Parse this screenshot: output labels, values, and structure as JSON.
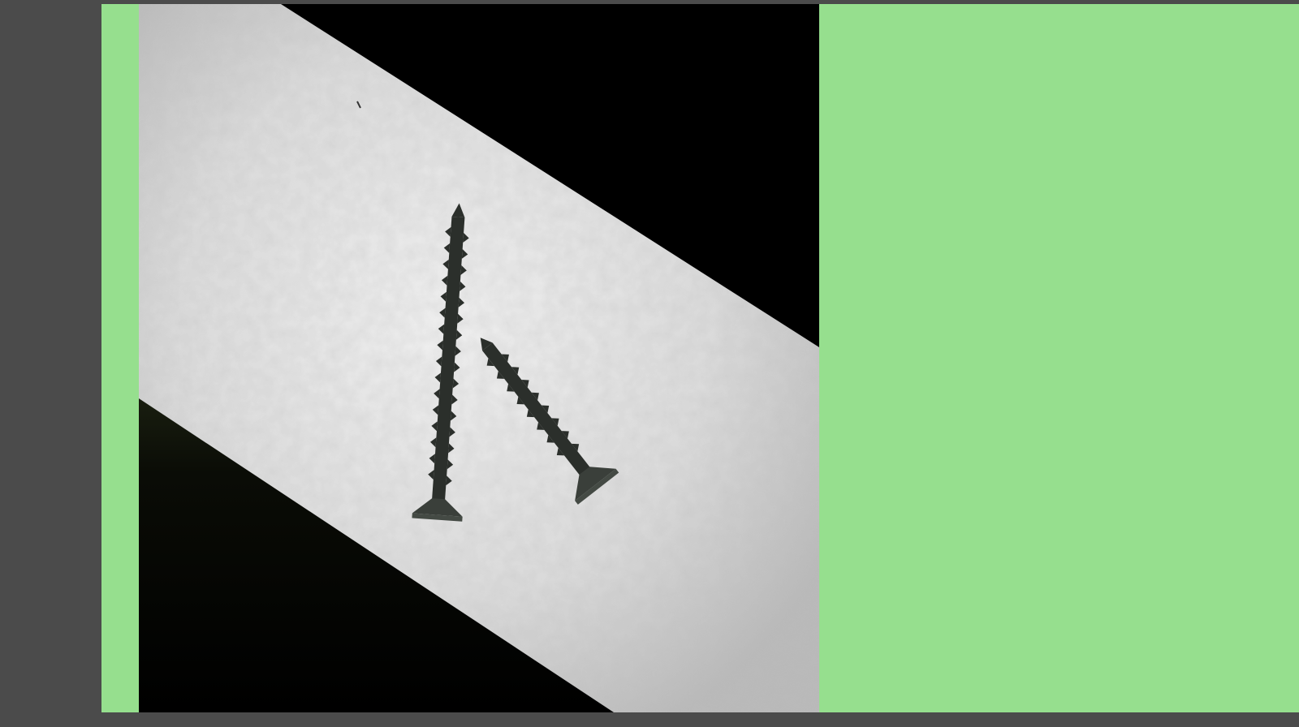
{
  "viewer": {
    "background_color": "#4b4b4b",
    "canvas_color": "#96df8e"
  },
  "photo": {
    "subject": "two-screws-silhouette",
    "light_strip_color": "#e4e4e4",
    "shadow_color": "#000000",
    "screw_color": "#2b2f2b"
  }
}
